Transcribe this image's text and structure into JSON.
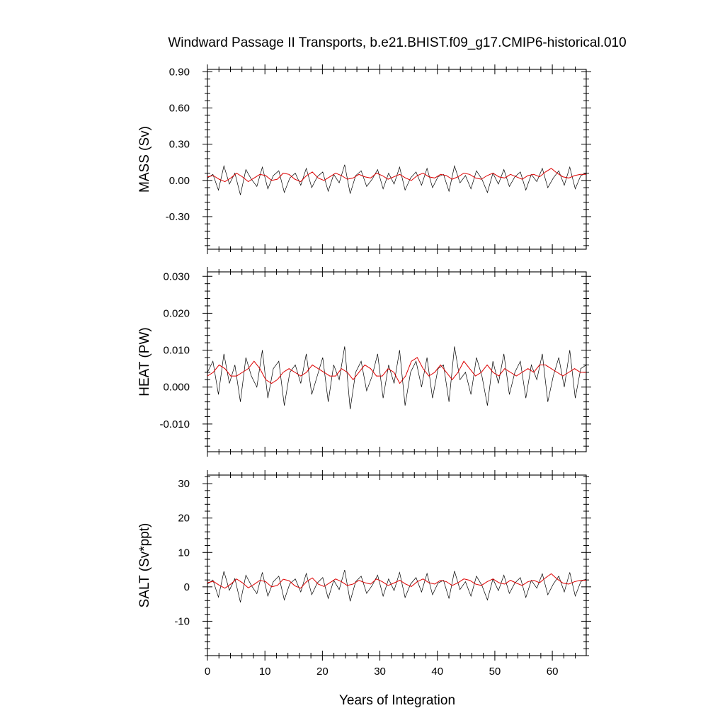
{
  "chart_data": {
    "type": "line",
    "title": "Windward Passage II Transports, b.e21.BHIST.f09_g17.CMIP6-historical.010",
    "xlabel": "Years of Integration",
    "xlim": [
      0,
      65.9
    ],
    "xticks": [
      "0",
      "10",
      "20",
      "30",
      "40",
      "50",
      "60"
    ],
    "grid": false,
    "colors": {
      "raw": "#000000",
      "smooth": "#dd0000"
    },
    "panels": [
      {
        "ylabel": "MASS (Sv)",
        "ylim": [
          -0.57,
          0.92
        ],
        "yticks": [
          -0.3,
          0.0,
          0.3,
          0.6,
          0.9
        ],
        "ytick_labels": [
          "-0.30",
          "0.00",
          "0.30",
          "0.60",
          "0.90"
        ],
        "series": [
          {
            "values": [
              0.02,
              0.05,
              -0.08,
              0.12,
              -0.03,
              0.06,
              -0.12,
              0.09,
              0.01,
              -0.05,
              0.11,
              -0.07,
              0.04,
              0.08,
              -0.1,
              0.02,
              0.06,
              -0.04,
              0.1,
              -0.06,
              0.03,
              0.07,
              -0.09,
              0.05,
              -0.02,
              0.13,
              -0.11,
              0.04,
              0.08,
              -0.05,
              0.01,
              0.09,
              -0.07,
              0.06,
              -0.03,
              0.11,
              -0.08,
              0.02,
              0.07,
              -0.04,
              0.1,
              -0.06,
              0.03,
              0.05,
              -0.09,
              0.12,
              -0.02,
              0.04,
              -0.07,
              0.08,
              0.01,
              -0.1,
              0.06,
              -0.03,
              0.09,
              -0.05,
              0.03,
              0.07,
              -0.08,
              0.05,
              -0.01,
              0.1,
              -0.06,
              0.02,
              0.08,
              -0.04,
              0.11,
              -0.07,
              0.04,
              0.06
            ]
          }
        ],
        "smooth_values": [
          0.03,
          0.04,
          0.01,
          -0.01,
          0.02,
          0.06,
          0.03,
          -0.01,
          0.02,
          0.05,
          0.04,
          0.0,
          0.01,
          0.06,
          0.05,
          0.01,
          -0.01,
          0.04,
          0.07,
          0.02,
          0.0,
          0.03,
          0.06,
          0.04,
          0.01,
          0.02,
          0.05,
          0.03,
          0.02,
          0.06,
          0.04,
          0.01,
          0.03,
          0.05,
          0.02,
          0.0,
          0.04,
          0.06,
          0.03,
          0.02,
          0.05,
          0.04,
          0.01,
          0.03,
          0.06,
          0.05,
          0.02,
          0.01,
          0.04,
          0.06,
          0.03,
          0.02,
          0.05,
          0.03,
          0.01,
          0.04,
          0.05,
          0.03,
          0.07,
          0.1,
          0.06,
          0.03,
          0.02,
          0.04,
          0.05,
          0.05
        ]
      },
      {
        "ylabel": "HEAT (PW)",
        "ylim": [
          -0.0175,
          0.0312
        ],
        "yticks": [
          -0.01,
          0.0,
          0.01,
          0.02,
          0.03
        ],
        "ytick_labels": [
          "-0.010",
          "0.000",
          "0.010",
          "0.020",
          "0.030"
        ],
        "series": [
          {
            "values": [
              0.004,
              0.007,
              -0.002,
              0.009,
              0.001,
              0.006,
              -0.004,
              0.008,
              0.003,
              0.0,
              0.01,
              -0.003,
              0.005,
              0.007,
              -0.005,
              0.004,
              0.006,
              0.001,
              0.009,
              -0.002,
              0.003,
              0.008,
              -0.004,
              0.006,
              0.002,
              0.011,
              -0.006,
              0.004,
              0.007,
              -0.001,
              0.003,
              0.009,
              -0.003,
              0.006,
              0.001,
              0.01,
              -0.005,
              0.004,
              0.007,
              0.0,
              0.008,
              -0.003,
              0.005,
              0.006,
              -0.004,
              0.011,
              0.002,
              0.004,
              -0.002,
              0.008,
              0.003,
              -0.005,
              0.007,
              0.001,
              0.009,
              -0.002,
              0.004,
              0.007,
              -0.003,
              0.006,
              0.002,
              0.009,
              -0.004,
              0.003,
              0.008,
              0.0,
              0.01,
              -0.003,
              0.005,
              0.006
            ]
          }
        ],
        "smooth_values": [
          0.003,
          0.004,
          0.006,
          0.005,
          0.003,
          0.003,
          0.004,
          0.005,
          0.007,
          0.005,
          0.002,
          0.001,
          0.002,
          0.004,
          0.005,
          0.004,
          0.003,
          0.004,
          0.006,
          0.005,
          0.004,
          0.003,
          0.003,
          0.005,
          0.004,
          0.002,
          0.004,
          0.006,
          0.005,
          0.003,
          0.003,
          0.005,
          0.004,
          0.001,
          0.003,
          0.007,
          0.008,
          0.005,
          0.003,
          0.004,
          0.006,
          0.004,
          0.002,
          0.004,
          0.007,
          0.005,
          0.003,
          0.004,
          0.006,
          0.004,
          0.003,
          0.005,
          0.004,
          0.003,
          0.004,
          0.005,
          0.004,
          0.006,
          0.006,
          0.005,
          0.004,
          0.003,
          0.004,
          0.005,
          0.004,
          0.004
        ]
      },
      {
        "ylabel": "SALT (Sv*ppt)",
        "ylim": [
          -20,
          32.5
        ],
        "yticks": [
          -10,
          0,
          10,
          20,
          30
        ],
        "ytick_labels": [
          "-10",
          "0",
          "10",
          "20",
          "30"
        ],
        "series": [
          {
            "values": [
              0.8,
              2.0,
              -3.0,
              4.5,
              -1.0,
              2.4,
              -4.5,
              3.4,
              0.4,
              -2.0,
              4.2,
              -2.7,
              1.5,
              3.1,
              -3.8,
              0.9,
              2.3,
              -1.5,
              3.9,
              -2.3,
              1.1,
              2.7,
              -3.4,
              1.9,
              -0.8,
              4.9,
              -4.2,
              1.5,
              3.1,
              -1.9,
              0.4,
              3.4,
              -2.7,
              2.3,
              -1.1,
              4.2,
              -3.1,
              0.8,
              2.7,
              -1.5,
              3.9,
              -2.3,
              1.1,
              1.9,
              -3.4,
              4.6,
              -0.8,
              1.5,
              -2.7,
              3.1,
              0.4,
              -3.8,
              2.3,
              -1.1,
              3.4,
              -1.9,
              1.1,
              2.7,
              -3.1,
              1.9,
              -0.4,
              3.8,
              -2.3,
              0.8,
              3.1,
              -1.5,
              4.2,
              -2.7,
              1.5,
              2.3
            ]
          }
        ],
        "smooth_values": [
          1.2,
          1.6,
          0.5,
          -0.4,
          0.8,
          2.3,
          1.2,
          -0.3,
          0.7,
          1.9,
          1.5,
          0.0,
          0.4,
          2.2,
          1.8,
          0.3,
          -0.4,
          1.5,
          2.6,
          0.8,
          0.1,
          1.2,
          2.3,
          1.5,
          0.4,
          0.8,
          1.9,
          1.2,
          0.8,
          2.3,
          1.5,
          0.4,
          1.1,
          1.9,
          0.8,
          0.1,
          1.5,
          2.3,
          1.2,
          0.8,
          1.9,
          1.5,
          0.4,
          1.2,
          2.3,
          1.9,
          0.8,
          0.4,
          1.5,
          2.3,
          1.2,
          0.8,
          1.9,
          1.1,
          0.4,
          1.5,
          1.9,
          1.2,
          2.6,
          3.8,
          2.3,
          1.1,
          0.8,
          1.5,
          1.9,
          1.9
        ]
      }
    ]
  }
}
